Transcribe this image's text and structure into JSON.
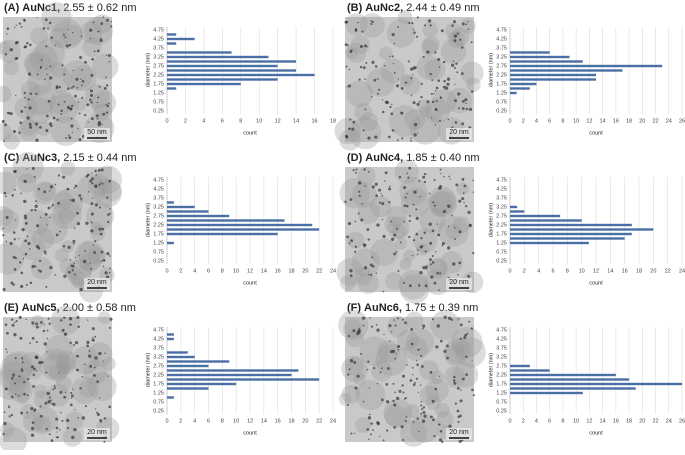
{
  "chart_data": [
    {
      "type": "bar",
      "panel": "(A)",
      "title": "AuNc1,",
      "subtitle": "2.55 ± 0.62 nm",
      "scale_bar": "50 nm",
      "ylabel": "diameter (nm)",
      "xlabel": "count",
      "color": "#4a6fa5",
      "grid": true,
      "categories": [
        "0.25",
        null,
        "0.75",
        null,
        "1.25",
        null,
        "1.75",
        null,
        "2.25",
        null,
        "2.75",
        null,
        "3.25",
        null,
        "3.75",
        null,
        "4.25",
        null,
        "4.75"
      ],
      "values": [
        0,
        0,
        0,
        0,
        0,
        1,
        8,
        12,
        16,
        14,
        12,
        14,
        11,
        7,
        0,
        1,
        3,
        1,
        0
      ],
      "xlim": [
        0,
        18
      ],
      "xticks": [
        0,
        2,
        4,
        6,
        8,
        10,
        12,
        14,
        16,
        18
      ]
    },
    {
      "type": "bar",
      "panel": "(B)",
      "title": "AuNc2,",
      "subtitle": "2.44 ± 0.49 nm",
      "scale_bar": "20 nm",
      "ylabel": "diameter (nm)",
      "xlabel": "count",
      "color": "#4a6fa5",
      "grid": true,
      "categories": [
        "0.25",
        null,
        "0.75",
        null,
        "1.25",
        null,
        "1.75",
        null,
        "2.25",
        null,
        "2.75",
        null,
        "3.25",
        null,
        "3.75",
        null,
        "4.25",
        null,
        "4.75"
      ],
      "values": [
        0,
        0,
        0,
        0,
        1,
        3,
        4,
        13,
        13,
        17,
        23,
        11,
        9,
        6,
        0,
        0,
        0,
        0,
        0
      ],
      "xlim": [
        0,
        26
      ],
      "xticks": [
        0,
        2,
        4,
        6,
        8,
        10,
        12,
        14,
        16,
        18,
        20,
        22,
        24,
        26
      ]
    },
    {
      "type": "bar",
      "panel": "(C)",
      "title": "AuNc3,",
      "subtitle": "2.15 ± 0.44 nm",
      "scale_bar": "20 nm",
      "ylabel": "diameter (nm)",
      "xlabel": "count",
      "color": "#4a6fa5",
      "grid": true,
      "categories": [
        "0.25",
        null,
        "0.75",
        null,
        "1.25",
        null,
        "1.75",
        null,
        "2.25",
        null,
        "2.75",
        null,
        "3.25",
        null,
        "3.75",
        null,
        "4.25",
        null,
        "4.75"
      ],
      "values": [
        0,
        0,
        0,
        0,
        1,
        0,
        16,
        22,
        21,
        17,
        9,
        6,
        4,
        1,
        0,
        0,
        0,
        0,
        0
      ],
      "xlim": [
        0,
        24
      ],
      "xticks": [
        0,
        2,
        4,
        6,
        8,
        10,
        12,
        14,
        16,
        18,
        20,
        22,
        24
      ]
    },
    {
      "type": "bar",
      "panel": "(D)",
      "title": "AuNc4,",
      "subtitle": "1.85 ± 0.40 nm",
      "scale_bar": "20 nm",
      "ylabel": "diameter (nm)",
      "xlabel": "count",
      "color": "#4a6fa5",
      "grid": true,
      "categories": [
        "0.25",
        null,
        "0.75",
        null,
        "1.25",
        null,
        "1.75",
        null,
        "2.25",
        null,
        "2.75",
        null,
        "3.25",
        null,
        "3.75",
        null,
        "4.25",
        null,
        "4.75"
      ],
      "values": [
        0,
        0,
        0,
        0,
        11,
        16,
        17,
        20,
        17,
        10,
        7,
        2,
        1,
        0,
        0,
        0,
        0,
        0,
        0
      ],
      "xlim": [
        0,
        24
      ],
      "xticks": [
        0,
        2,
        4,
        6,
        8,
        10,
        12,
        14,
        16,
        18,
        20,
        22,
        24
      ]
    },
    {
      "type": "bar",
      "panel": "(E)",
      "title": "AuNc5,",
      "subtitle": "2.00 ± 0.58 nm",
      "scale_bar": "20 nm",
      "ylabel": "diameter (nm)",
      "xlabel": "count",
      "color": "#4a6fa5",
      "grid": true,
      "categories": [
        "0.25",
        null,
        "0.75",
        null,
        "1.25",
        null,
        "1.75",
        null,
        "2.25",
        null,
        "2.75",
        null,
        "3.25",
        null,
        "3.75",
        null,
        "4.25",
        null,
        "4.75"
      ],
      "values": [
        0,
        0,
        0,
        1,
        0,
        6,
        10,
        22,
        18,
        19,
        6,
        9,
        4,
        3,
        0,
        0,
        1,
        1,
        0
      ],
      "xlim": [
        0,
        24
      ],
      "xticks": [
        0,
        2,
        4,
        6,
        8,
        10,
        12,
        14,
        16,
        18,
        20,
        22,
        24
      ]
    },
    {
      "type": "bar",
      "panel": "(F)",
      "title": "AuNc6,",
      "subtitle": "1.75 ± 0.39 nm",
      "scale_bar": "20 nm",
      "ylabel": "diameter (nm)",
      "xlabel": "count",
      "color": "#4a6fa5",
      "grid": true,
      "categories": [
        "0.25",
        null,
        "0.75",
        null,
        "1.25",
        null,
        "1.75",
        null,
        "2.25",
        null,
        "2.75",
        null,
        "3.25",
        null,
        "3.75",
        null,
        "4.25",
        null,
        "4.75"
      ],
      "values": [
        0,
        0,
        0,
        0,
        11,
        19,
        26,
        18,
        16,
        6,
        3,
        0,
        0,
        0,
        0,
        0,
        0,
        0,
        0
      ],
      "xlim": [
        0,
        26
      ],
      "xticks": [
        0,
        2,
        4,
        6,
        8,
        10,
        12,
        14,
        16,
        18,
        20,
        22,
        24,
        26
      ]
    }
  ]
}
